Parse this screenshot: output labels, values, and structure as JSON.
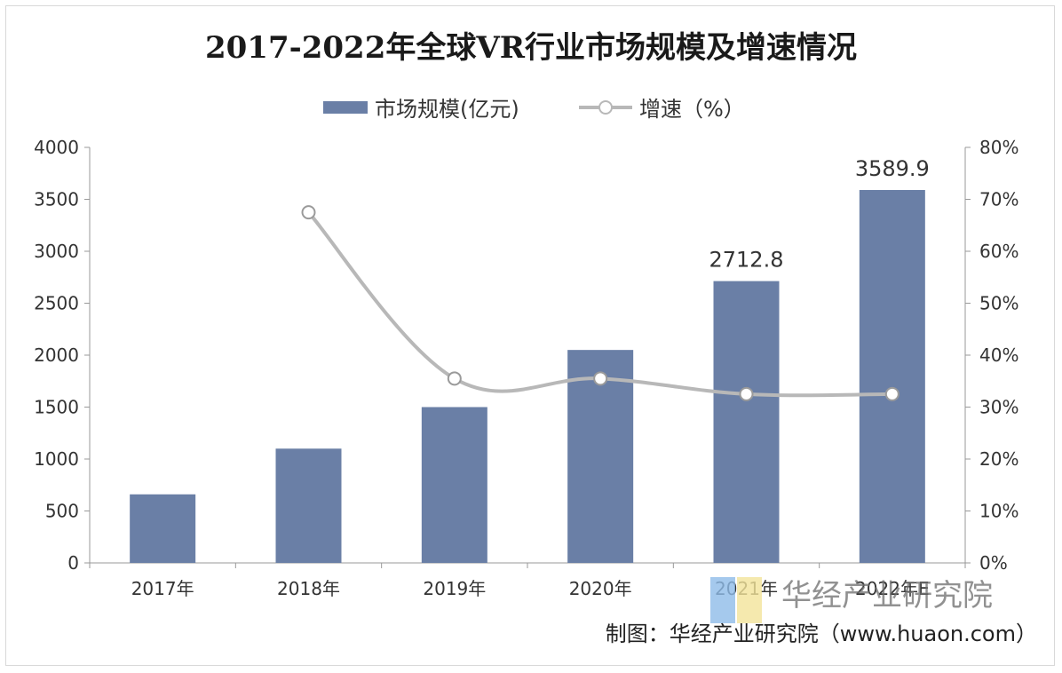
{
  "chart_data": {
    "type": "bar",
    "title": "2017-2022年全球VR行业市场规模及增速情况",
    "categories": [
      "2017年",
      "2018年",
      "2019年",
      "2020年",
      "2021年",
      "2022年E"
    ],
    "series": [
      {
        "name": "市场规模(亿元)",
        "type": "bar",
        "axis": "left",
        "color": "#6a7fa6",
        "values": [
          660,
          1100,
          1500,
          2050,
          2712.8,
          3589.9
        ],
        "data_labels": [
          null,
          null,
          null,
          null,
          "2712.8",
          "3589.9"
        ]
      },
      {
        "name": "增速（%）",
        "type": "line",
        "axis": "right",
        "color": "#b8b8b8",
        "values": [
          null,
          67.5,
          35.5,
          35.5,
          32.5,
          32.5
        ]
      }
    ],
    "y_left": {
      "min": 0,
      "max": 4000,
      "step": 500,
      "ticks": [
        "0",
        "500",
        "1000",
        "1500",
        "2000",
        "2500",
        "3000",
        "3500",
        "4000"
      ]
    },
    "y_right": {
      "min": 0,
      "max": 80,
      "step": 10,
      "ticks": [
        "0%",
        "10%",
        "20%",
        "30%",
        "40%",
        "50%",
        "60%",
        "70%",
        "80%"
      ]
    },
    "legend_position": "top-center",
    "grid": false
  },
  "watermark": {
    "text": "华经产业研究院",
    "colors": [
      "#8fbbe8",
      "#f2e49a"
    ]
  },
  "source": "制图：华经产业研究院（www.huaon.com）"
}
